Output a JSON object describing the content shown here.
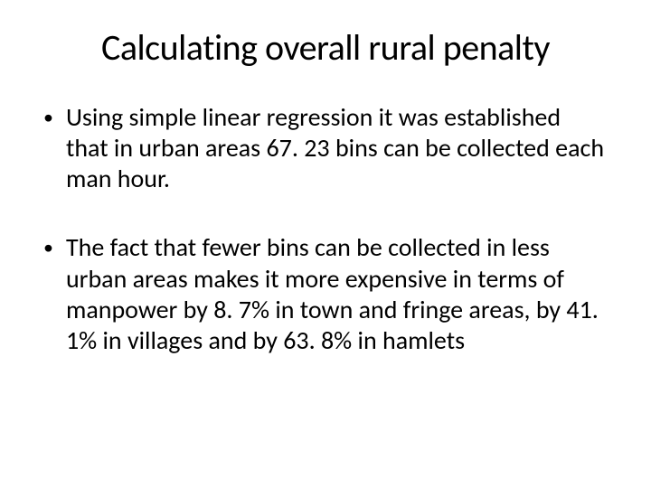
{
  "slide": {
    "title": "Calculating overall rural penalty",
    "bullets": [
      "Using simple linear regression it was established that in urban areas 67. 23 bins can be collected each man hour.",
      "The fact that fewer bins can be collected in less urban areas makes it more expensive in terms of manpower by 8. 7% in town and fringe areas, by 41. 1% in villages and by 63. 8% in hamlets"
    ],
    "colors": {
      "background": "#ffffff",
      "text": "#000000"
    },
    "fonts": {
      "title_size": 40,
      "body_size": 28,
      "family": "Calibri"
    }
  }
}
